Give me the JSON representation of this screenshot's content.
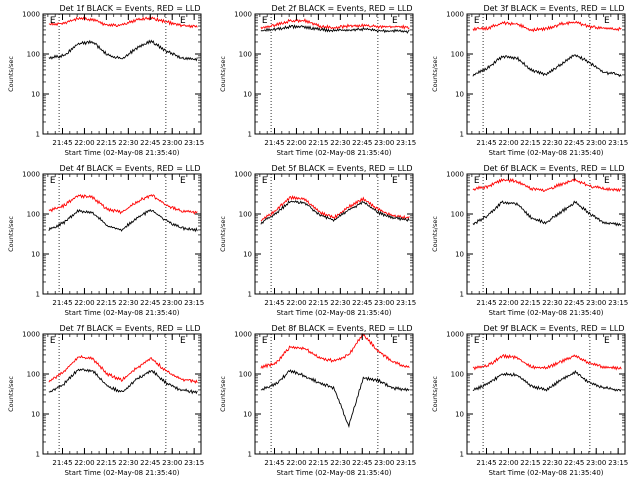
{
  "chart_data": [
    {
      "type": "line",
      "title": "Det 1f BLACK = Events, RED = LLD",
      "xlabel": "Start Time (02-May-08 21:35:40)",
      "ylabel": "Counts/sec",
      "x_ticks": [
        "21:45",
        "22:00",
        "22:15",
        "22:30",
        "22:45",
        "23:00",
        "23:15"
      ],
      "y_ticks": [
        "1",
        "10",
        "100",
        "1000"
      ],
      "yscale": "log",
      "ylim": [
        1,
        1000
      ],
      "xlim_minutes": [
        -4,
        104
      ],
      "markers": [
        {
          "label": "E",
          "x_minute": 0
        },
        {
          "label": "E",
          "x_minute": 89
        }
      ],
      "vlines_minutes": [
        7,
        80
      ],
      "series": [
        {
          "color": "#ff0000",
          "x_minutes": [
            0,
            10,
            20,
            30,
            40,
            50,
            60,
            70,
            80,
            90,
            100
          ],
          "values": [
            560,
            580,
            780,
            720,
            520,
            540,
            720,
            800,
            640,
            520,
            500
          ]
        },
        {
          "color": "#000000",
          "x_minutes": [
            0,
            10,
            20,
            30,
            40,
            50,
            60,
            70,
            80,
            90,
            100
          ],
          "values": [
            80,
            90,
            180,
            200,
            95,
            75,
            140,
            210,
            120,
            80,
            75
          ]
        }
      ]
    },
    {
      "type": "line",
      "title": "Det 2f BLACK = Events, RED = LLD",
      "xlabel": "Start Time (02-May-08 21:35:40)",
      "ylabel": "Counts/sec",
      "x_ticks": [
        "21:45",
        "22:00",
        "22:15",
        "22:30",
        "22:45",
        "23:00",
        "23:15"
      ],
      "y_ticks": [
        "1",
        "10",
        "100",
        "1000"
      ],
      "yscale": "log",
      "ylim": [
        1,
        1000
      ],
      "xlim_minutes": [
        -4,
        104
      ],
      "markers": [
        {
          "label": "E",
          "x_minute": 0
        },
        {
          "label": "E",
          "x_minute": 89
        }
      ],
      "vlines_minutes": [
        7,
        80
      ],
      "series": [
        {
          "color": "#ff0000",
          "x_minutes": [
            0,
            10,
            20,
            30,
            40,
            50,
            60,
            70,
            80,
            90,
            100
          ],
          "values": [
            450,
            520,
            680,
            680,
            500,
            450,
            500,
            520,
            480,
            480,
            470
          ]
        },
        {
          "color": "#000000",
          "x_minutes": [
            0,
            10,
            20,
            30,
            40,
            50,
            60,
            70,
            80,
            90,
            100
          ],
          "values": [
            380,
            420,
            480,
            480,
            420,
            380,
            400,
            420,
            380,
            380,
            370
          ]
        }
      ]
    },
    {
      "type": "line",
      "title": "Det 3f BLACK = Events, RED = LLD",
      "xlabel": "Start Time (02-May-08 21:35:40)",
      "ylabel": "Counts/sec",
      "x_ticks": [
        "21:45",
        "22:00",
        "22:15",
        "22:30",
        "22:45",
        "23:00",
        "23:15"
      ],
      "y_ticks": [
        "1",
        "10",
        "100",
        "1000"
      ],
      "yscale": "log",
      "ylim": [
        1,
        1000
      ],
      "xlim_minutes": [
        -4,
        104
      ],
      "markers": [
        {
          "label": "E",
          "x_minute": 0
        },
        {
          "label": "E",
          "x_minute": 89
        }
      ],
      "vlines_minutes": [
        7,
        80
      ],
      "series": [
        {
          "color": "#ff0000",
          "x_minutes": [
            0,
            10,
            20,
            30,
            40,
            50,
            60,
            70,
            80,
            90,
            100
          ],
          "values": [
            420,
            440,
            600,
            560,
            400,
            420,
            560,
            620,
            480,
            430,
            420
          ]
        },
        {
          "color": "#000000",
          "x_minutes": [
            0,
            10,
            20,
            30,
            40,
            50,
            60,
            70,
            80,
            90,
            100
          ],
          "values": [
            30,
            45,
            85,
            80,
            40,
            30,
            55,
            95,
            60,
            35,
            30
          ]
        }
      ]
    },
    {
      "type": "line",
      "title": "Det 4f BLACK = Events, RED = LLD",
      "xlabel": "Start Time (02-May-08 21:35:40)",
      "ylabel": "Counts/sec",
      "x_ticks": [
        "21:45",
        "22:00",
        "22:15",
        "22:30",
        "22:45",
        "23:00",
        "23:15"
      ],
      "y_ticks": [
        "1",
        "10",
        "100",
        "1000"
      ],
      "yscale": "log",
      "ylim": [
        1,
        1000
      ],
      "xlim_minutes": [
        -4,
        104
      ],
      "markers": [
        {
          "label": "E",
          "x_minute": 0
        },
        {
          "label": "E",
          "x_minute": 89
        }
      ],
      "vlines_minutes": [
        7,
        80
      ],
      "series": [
        {
          "color": "#ff0000",
          "x_minutes": [
            0,
            10,
            20,
            30,
            40,
            50,
            60,
            70,
            80,
            90,
            100
          ],
          "values": [
            120,
            160,
            290,
            260,
            130,
            110,
            200,
            300,
            170,
            120,
            110
          ]
        },
        {
          "color": "#000000",
          "x_minutes": [
            0,
            10,
            20,
            30,
            40,
            50,
            60,
            70,
            80,
            90,
            100
          ],
          "values": [
            40,
            60,
            120,
            110,
            50,
            40,
            80,
            125,
            70,
            45,
            40
          ]
        }
      ]
    },
    {
      "type": "line",
      "title": "Det 5f BLACK = Events, RED = LLD",
      "xlabel": "Start Time (02-May-08 21:35:40)",
      "ylabel": "Counts/sec",
      "x_ticks": [
        "21:45",
        "22:00",
        "22:15",
        "22:30",
        "22:45",
        "23:00",
        "23:15"
      ],
      "y_ticks": [
        "1",
        "10",
        "100",
        "1000"
      ],
      "yscale": "log",
      "ylim": [
        1,
        1000
      ],
      "xlim_minutes": [
        -4,
        104
      ],
      "markers": [
        {
          "label": "E",
          "x_minute": 0
        },
        {
          "label": "E",
          "x_minute": 89
        }
      ],
      "vlines_minutes": [
        7,
        80
      ],
      "series": [
        {
          "color": "#ff0000",
          "x_minutes": [
            0,
            10,
            20,
            30,
            40,
            50,
            60,
            70,
            80,
            90,
            100
          ],
          "values": [
            70,
            120,
            260,
            230,
            110,
            80,
            150,
            240,
            130,
            90,
            80
          ]
        },
        {
          "color": "#000000",
          "x_minutes": [
            0,
            10,
            20,
            30,
            40,
            50,
            60,
            70,
            80,
            90,
            100
          ],
          "values": [
            60,
            100,
            210,
            190,
            95,
            70,
            125,
            200,
            110,
            80,
            70
          ]
        }
      ]
    },
    {
      "type": "line",
      "title": "Det 6f BLACK = Events, RED = LLD",
      "xlabel": "Start Time (02-May-08 21:35:40)",
      "ylabel": "Counts/sec",
      "x_ticks": [
        "21:45",
        "22:00",
        "22:15",
        "22:30",
        "22:45",
        "23:00",
        "23:15"
      ],
      "y_ticks": [
        "1",
        "10",
        "100",
        "1000"
      ],
      "yscale": "log",
      "ylim": [
        1,
        1000
      ],
      "xlim_minutes": [
        -4,
        104
      ],
      "markers": [
        {
          "label": "E",
          "x_minute": 0
        },
        {
          "label": "E",
          "x_minute": 89
        }
      ],
      "vlines_minutes": [
        7,
        80
      ],
      "series": [
        {
          "color": "#ff0000",
          "x_minutes": [
            0,
            10,
            20,
            30,
            40,
            50,
            60,
            70,
            80,
            90,
            100
          ],
          "values": [
            420,
            480,
            720,
            660,
            420,
            400,
            550,
            700,
            500,
            420,
            400
          ]
        },
        {
          "color": "#000000",
          "x_minutes": [
            0,
            10,
            20,
            30,
            40,
            50,
            60,
            70,
            80,
            90,
            100
          ],
          "values": [
            55,
            90,
            200,
            180,
            80,
            60,
            110,
            200,
            100,
            60,
            55
          ]
        }
      ]
    },
    {
      "type": "line",
      "title": "Det 7f BLACK = Events, RED = LLD",
      "xlabel": "Start Time (02-May-08 21:35:40)",
      "ylabel": "Counts/sec",
      "x_ticks": [
        "21:45",
        "22:00",
        "22:15",
        "22:30",
        "22:45",
        "23:00",
        "23:15"
      ],
      "y_ticks": [
        "1",
        "10",
        "100",
        "1000"
      ],
      "yscale": "log",
      "ylim": [
        1,
        1000
      ],
      "xlim_minutes": [
        -4,
        104
      ],
      "markers": [
        {
          "label": "E",
          "x_minute": 0
        },
        {
          "label": "E",
          "x_minute": 89
        }
      ],
      "vlines_minutes": [
        7,
        80
      ],
      "series": [
        {
          "color": "#ff0000",
          "x_minutes": [
            0,
            10,
            20,
            30,
            40,
            50,
            60,
            70,
            80,
            90,
            100
          ],
          "values": [
            65,
            110,
            270,
            240,
            100,
            70,
            140,
            250,
            120,
            75,
            65
          ]
        },
        {
          "color": "#000000",
          "x_minutes": [
            0,
            10,
            20,
            30,
            40,
            50,
            60,
            70,
            80,
            90,
            100
          ],
          "values": [
            35,
            55,
            130,
            120,
            50,
            35,
            75,
            125,
            60,
            40,
            35
          ]
        }
      ]
    },
    {
      "type": "line",
      "title": "Det 8f BLACK = Events, RED = LLD",
      "xlabel": "Start Time (02-May-08 21:35:40)",
      "ylabel": "Counts/sec",
      "x_ticks": [
        "21:45",
        "22:00",
        "22:15",
        "22:30",
        "22:45",
        "23:00",
        "23:15"
      ],
      "y_ticks": [
        "1",
        "10",
        "100",
        "1000"
      ],
      "yscale": "log",
      "ylim": [
        1,
        1000
      ],
      "xlim_minutes": [
        -4,
        104
      ],
      "markers": [
        {
          "label": "E",
          "x_minute": 0
        },
        {
          "label": "E",
          "x_minute": 89
        }
      ],
      "vlines_minutes": [
        7,
        80
      ],
      "series": [
        {
          "color": "#ff0000",
          "x_minutes": [
            0,
            10,
            20,
            30,
            40,
            50,
            60,
            70,
            80,
            90,
            100
          ],
          "values": [
            150,
            180,
            480,
            430,
            260,
            210,
            300,
            1000,
            380,
            200,
            150
          ]
        },
        {
          "color": "#000000",
          "x_minutes": [
            0,
            10,
            20,
            30,
            40,
            50,
            60,
            70,
            80,
            90,
            100
          ],
          "values": [
            40,
            55,
            120,
            90,
            60,
            45,
            5,
            80,
            70,
            45,
            40
          ]
        }
      ]
    },
    {
      "type": "line",
      "title": "Det 9f BLACK = Events, RED = LLD",
      "xlabel": "Start Time (02-May-08 21:35:40)",
      "ylabel": "Counts/sec",
      "x_ticks": [
        "21:45",
        "22:00",
        "22:15",
        "22:30",
        "22:45",
        "23:00",
        "23:15"
      ],
      "y_ticks": [
        "1",
        "10",
        "100",
        "1000"
      ],
      "yscale": "log",
      "ylim": [
        1,
        1000
      ],
      "xlim_minutes": [
        -4,
        104
      ],
      "markers": [
        {
          "label": "E",
          "x_minute": 0
        },
        {
          "label": "E",
          "x_minute": 89
        }
      ],
      "vlines_minutes": [
        7,
        80
      ],
      "series": [
        {
          "color": "#ff0000",
          "x_minutes": [
            0,
            10,
            20,
            30,
            40,
            50,
            60,
            70,
            80,
            90,
            100
          ],
          "values": [
            140,
            160,
            280,
            260,
            150,
            140,
            200,
            290,
            180,
            150,
            140
          ]
        },
        {
          "color": "#000000",
          "x_minutes": [
            0,
            10,
            20,
            30,
            40,
            50,
            60,
            70,
            80,
            90,
            100
          ],
          "values": [
            40,
            55,
            100,
            95,
            50,
            40,
            70,
            110,
            60,
            45,
            40
          ]
        }
      ]
    }
  ]
}
